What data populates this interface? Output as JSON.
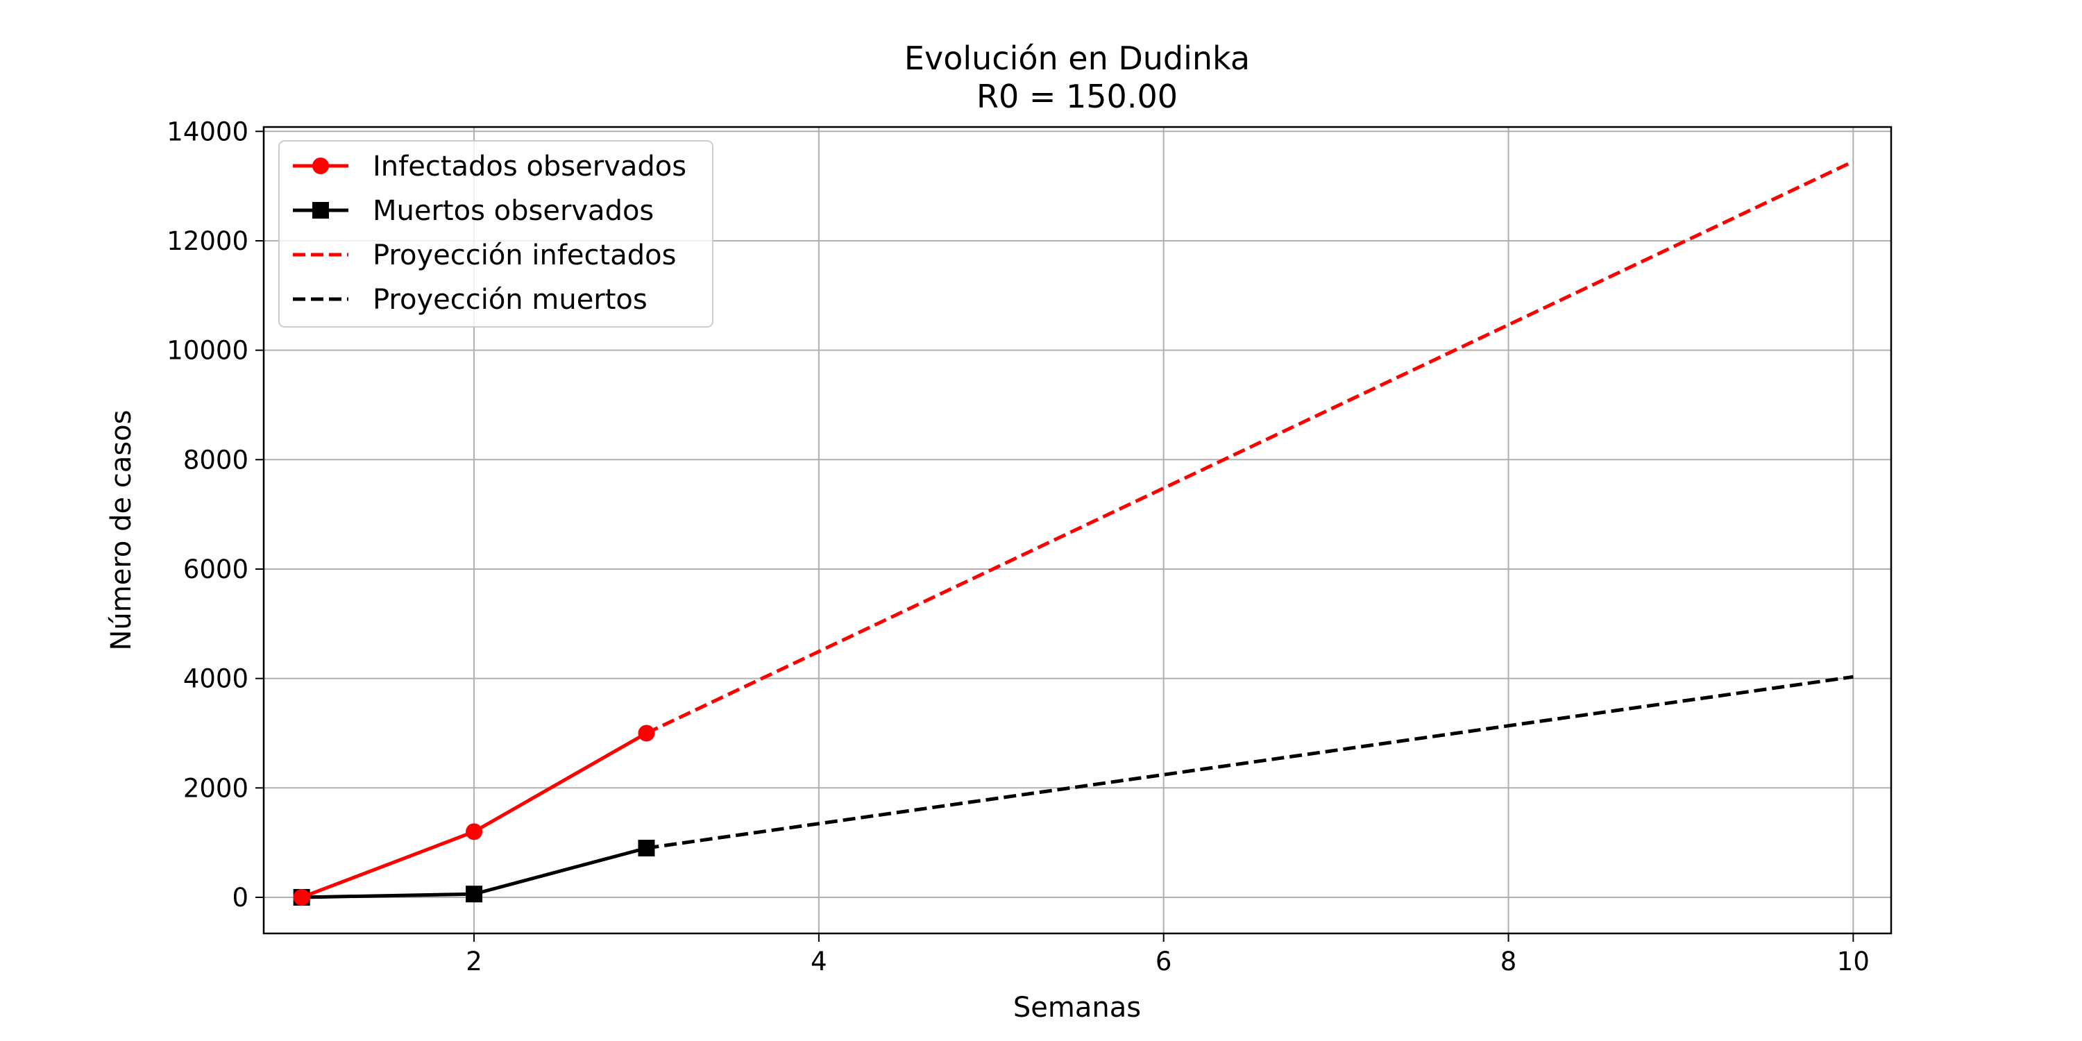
{
  "chart_data": {
    "type": "line",
    "title": "Evolución en Dudinka",
    "subtitle": "R0 = 150.00",
    "xlabel": "Semanas",
    "ylabel": "Número de casos",
    "xlim": [
      0.78,
      10.22
    ],
    "ylim": [
      -660,
      14080
    ],
    "xticks": [
      2,
      4,
      6,
      8,
      10
    ],
    "yticks": [
      0,
      2000,
      4000,
      6000,
      8000,
      10000,
      12000,
      14000
    ],
    "grid": true,
    "legend_position": "upper-left",
    "series": [
      {
        "name": "Infectados observados",
        "x": [
          1,
          2,
          3
        ],
        "values": [
          0,
          1200,
          3000
        ],
        "color": "#ff0000",
        "style": "solid",
        "marker": "circle"
      },
      {
        "name": "Muertos observados",
        "x": [
          1,
          2,
          3
        ],
        "values": [
          0,
          60,
          900
        ],
        "color": "#000000",
        "style": "solid",
        "marker": "square"
      },
      {
        "name": "Proyección infectados",
        "x": [
          3,
          10
        ],
        "values": [
          3000,
          13450
        ],
        "color": "#ff0000",
        "style": "dashed",
        "marker": "none"
      },
      {
        "name": "Proyección muertos",
        "x": [
          3,
          10
        ],
        "values": [
          900,
          4030
        ],
        "color": "#000000",
        "style": "dashed",
        "marker": "none"
      }
    ]
  }
}
